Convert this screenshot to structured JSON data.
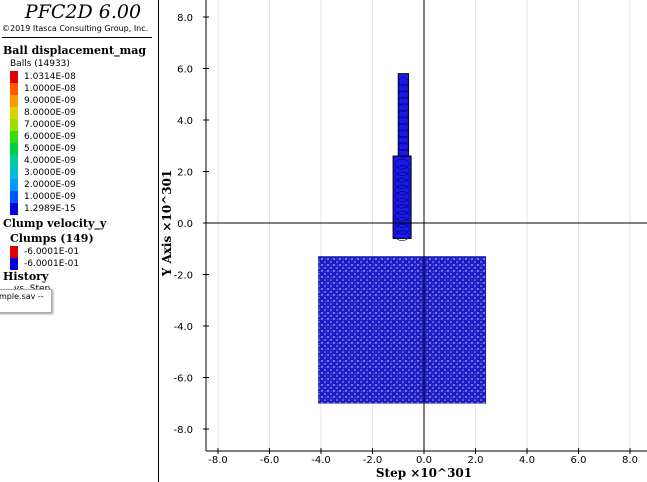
{
  "app": {
    "title": "PFC2D 6.00",
    "copyright": "©2019 Itasca Consulting Group, Inc."
  },
  "legend": {
    "ball_section": "Ball displacement_mag",
    "ball_group": "Balls (14933)",
    "ball_items": [
      {
        "value": "1.0314E-08",
        "color": "#e10000"
      },
      {
        "value": "1.0000E-08",
        "color": "#ff5a00"
      },
      {
        "value": "9.0000E-09",
        "color": "#ff9900"
      },
      {
        "value": "8.0000E-09",
        "color": "#ddd000"
      },
      {
        "value": "7.0000E-09",
        "color": "#99e000"
      },
      {
        "value": "6.0000E-09",
        "color": "#33dd00"
      },
      {
        "value": "5.0000E-09",
        "color": "#00cc44"
      },
      {
        "value": "4.0000E-09",
        "color": "#00cc99"
      },
      {
        "value": "3.0000E-09",
        "color": "#00bbdd"
      },
      {
        "value": "2.0000E-09",
        "color": "#0099ff"
      },
      {
        "value": "1.0000E-09",
        "color": "#0055ff"
      },
      {
        "value": "1.2989E-15",
        "color": "#0000dd"
      }
    ],
    "clump_section": "Clump velocity_y",
    "clump_group": "Clumps (149)",
    "clump_items": [
      {
        "value": "-6.0001E-01",
        "color": "#dd0000"
      },
      {
        "value": "-6.0001E-01",
        "color": "#0000dd"
      }
    ],
    "history_section": "History",
    "history_item": "vs. Step",
    "tooltip": "mple.sav --"
  },
  "plot": {
    "x_axis_label": "Step ×10^301",
    "y_axis_label": "Y Axis ×10^301",
    "x_ticks": [
      "-8.0",
      "-6.0",
      "-4.0",
      "-2.0",
      "0.0",
      "2.0",
      "4.0",
      "6.0",
      "8.0"
    ],
    "y_ticks": [
      "8.0",
      "6.0",
      "4.0",
      "2.0",
      "0.0",
      "-2.0",
      "-4.0",
      "-6.0",
      "-8.0"
    ],
    "x_tick_values": [
      -8,
      -6,
      -4,
      -2,
      0,
      2,
      4,
      6,
      8
    ],
    "y_tick_values": [
      8,
      6,
      4,
      2,
      0,
      -2,
      -4,
      -6,
      -8
    ],
    "model": {
      "box": {
        "x_min": -4.1,
        "x_max": 2.4,
        "y_min": -7.0,
        "y_max": -1.3,
        "color": "#1e1ec8"
      },
      "column_lower": {
        "x_min": -1.2,
        "x_max": -0.5,
        "y_min": -0.6,
        "y_max": 2.6
      },
      "column_upper": {
        "x_min": -1.0,
        "x_max": -0.6,
        "y_min": 2.6,
        "y_max": 5.8
      },
      "column_color": "#1a1ae6"
    }
  }
}
